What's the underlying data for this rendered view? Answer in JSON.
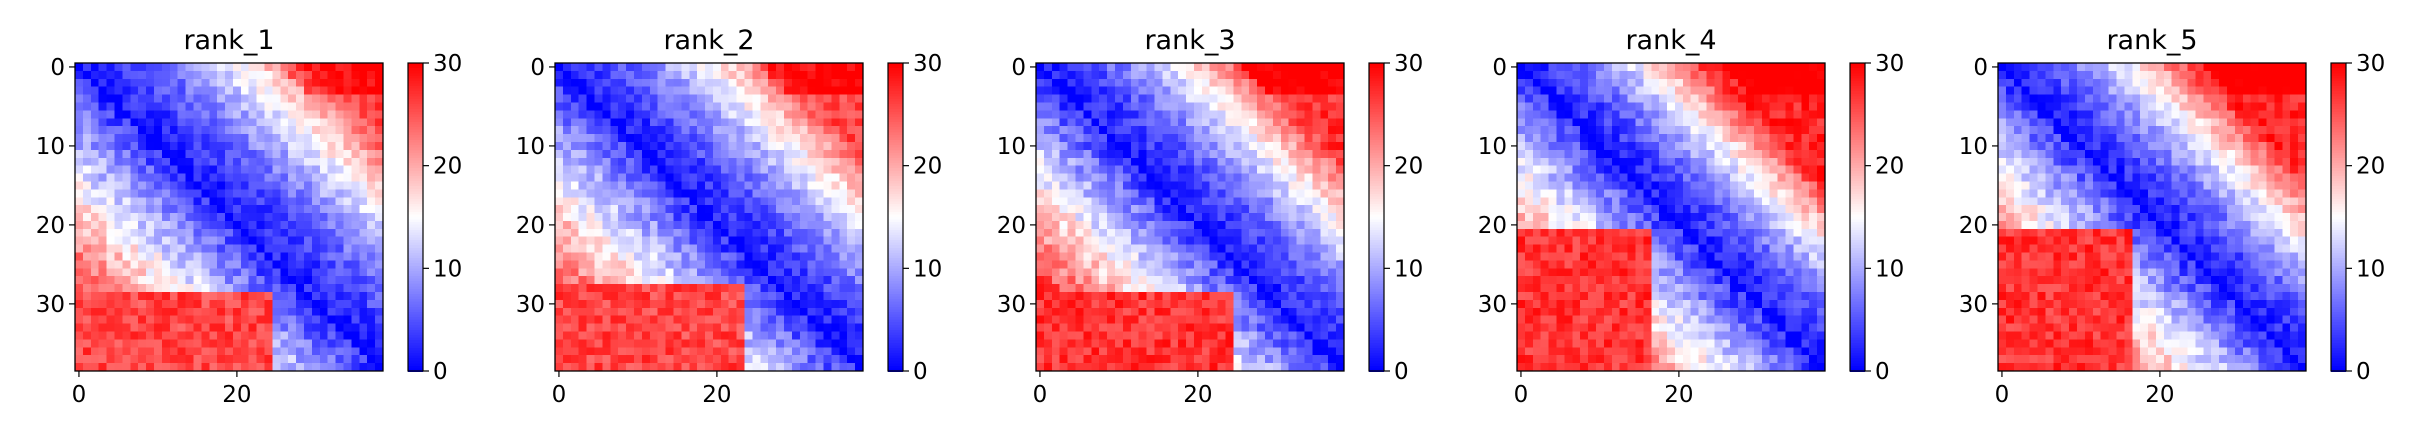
{
  "chart_data": [
    {
      "type": "heatmap",
      "title": "rank_1",
      "size": 39,
      "vmin": 0,
      "vmax": 30,
      "colormap": "bwr",
      "xticks": [
        0,
        20
      ],
      "yticks": [
        0,
        10,
        20,
        30
      ],
      "cbar_ticks": [
        0,
        10,
        20,
        30
      ],
      "near_upper": 2,
      "far_upper": 22,
      "upper_gap": 30,
      "lower_split": 29,
      "lower_high": 26
    },
    {
      "type": "heatmap",
      "title": "rank_2",
      "size": 39,
      "vmin": 0,
      "vmax": 30,
      "colormap": "bwr",
      "xticks": [
        0,
        20
      ],
      "yticks": [
        0,
        10,
        20,
        30
      ],
      "cbar_ticks": [
        0,
        10,
        20,
        30
      ],
      "near_upper": 2,
      "far_upper": 22,
      "upper_gap": 28,
      "lower_split": 28,
      "lower_high": 26
    },
    {
      "type": "heatmap",
      "title": "rank_3",
      "size": 39,
      "vmin": 0,
      "vmax": 30,
      "colormap": "bwr",
      "xticks": [
        0,
        20
      ],
      "yticks": [
        0,
        10,
        20,
        30
      ],
      "cbar_ticks": [
        0,
        10,
        20,
        30
      ],
      "near_upper": 2,
      "far_upper": 23,
      "upper_gap": 27,
      "lower_split": 29,
      "lower_high": 27
    },
    {
      "type": "heatmap",
      "title": "rank_4",
      "size": 39,
      "vmin": 0,
      "vmax": 30,
      "colormap": "bwr",
      "xticks": [
        0,
        20
      ],
      "yticks": [
        0,
        10,
        20,
        30
      ],
      "cbar_ticks": [
        0,
        10,
        20,
        30
      ],
      "near_upper": 2,
      "far_upper": 24,
      "upper_gap": 24,
      "lower_split": 21,
      "lower_high": 27
    },
    {
      "type": "heatmap",
      "title": "rank_5",
      "size": 39,
      "vmin": 0,
      "vmax": 30,
      "colormap": "bwr",
      "xticks": [
        0,
        20
      ],
      "yticks": [
        0,
        10,
        20,
        30
      ],
      "cbar_ticks": [
        0,
        10,
        20,
        30
      ],
      "near_upper": 2,
      "far_upper": 24,
      "upper_gap": 25,
      "lower_split": 21,
      "lower_high": 27
    }
  ]
}
